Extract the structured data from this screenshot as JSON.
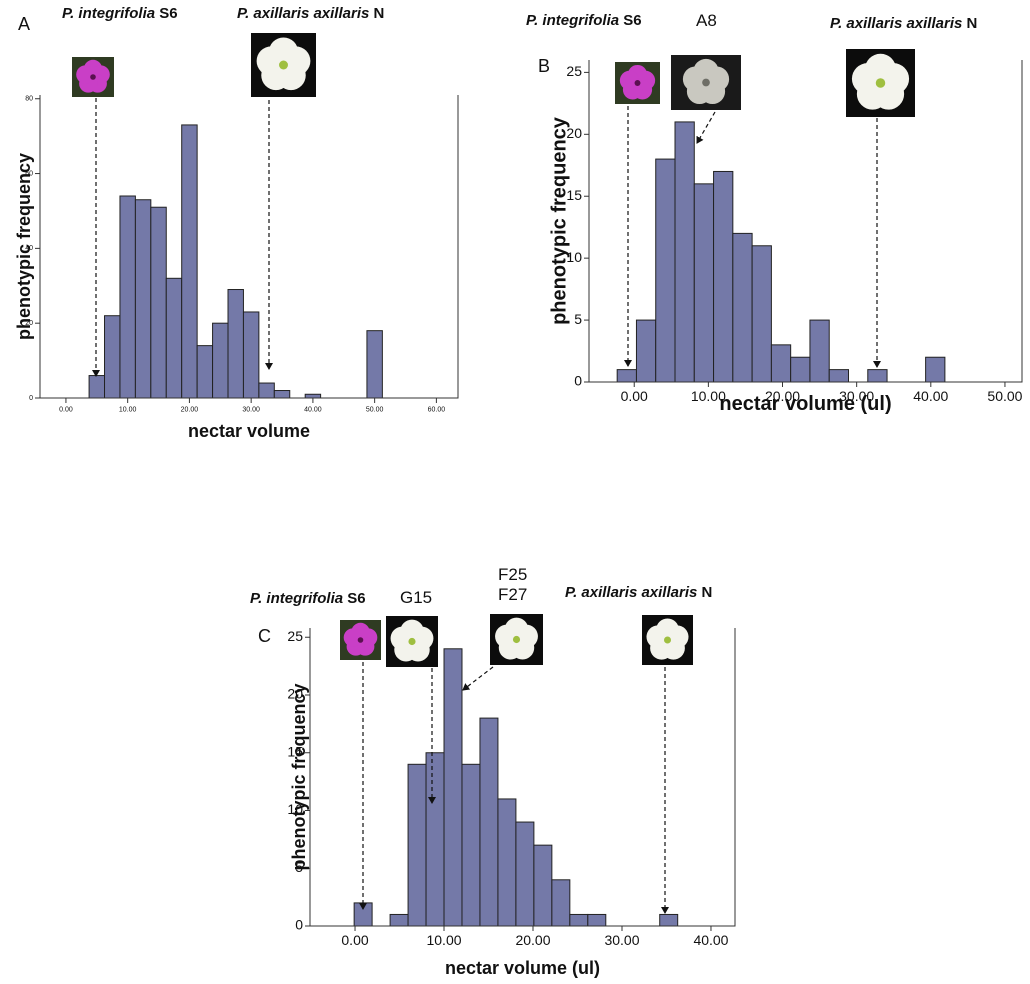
{
  "chart_data": [
    {
      "type": "histogram",
      "panel": "A",
      "x_label": "nectar volume",
      "y_label": "phenotypic frequency",
      "color": "#7479a8",
      "bins": [
        3.75,
        6.25,
        8.75,
        11.25,
        13.75,
        16.25,
        18.75,
        21.25,
        23.75,
        26.25,
        28.75,
        31.25,
        33.75,
        36.25,
        38.75,
        41.25,
        43.75,
        46.25,
        48.75,
        51.25
      ],
      "values": [
        6,
        22,
        54,
        53,
        51,
        32,
        73,
        14,
        20,
        29,
        23,
        4,
        2,
        0,
        1,
        0,
        0,
        0,
        18
      ],
      "xlim": [
        -4.2,
        63.5
      ],
      "ylim": [
        0,
        81
      ],
      "xticks": [
        {
          "value": 0,
          "label": "0.00"
        },
        {
          "value": 10,
          "label": "10.00"
        },
        {
          "value": 20,
          "label": "20.00"
        },
        {
          "value": 30,
          "label": "30.00"
        },
        {
          "value": 40,
          "label": "40.00"
        },
        {
          "value": 50,
          "label": "50.00"
        },
        {
          "value": 60,
          "label": "60.00"
        }
      ],
      "yticks": [
        0,
        20,
        40,
        60,
        80
      ],
      "annotations": [
        {
          "species": "P. integrifolia",
          "code": "S6"
        },
        {
          "species": "P. axillaris axillaris",
          "code": "N"
        }
      ]
    },
    {
      "type": "histogram",
      "panel": "B",
      "x_label": "nectar volume (ul)",
      "y_label": "phenotypic frequency",
      "color": "#7479a8",
      "bins": [
        -2.3,
        0.3,
        2.9,
        5.5,
        8.1,
        10.7,
        13.3,
        15.9,
        18.5,
        21.1,
        23.7,
        26.3,
        28.9,
        31.5,
        34.1,
        36.7,
        39.3,
        41.9
      ],
      "values": [
        1,
        5,
        18,
        21,
        16,
        17,
        12,
        11,
        3,
        2,
        5,
        1,
        0,
        1,
        0,
        0,
        2
      ],
      "xlim": [
        -6.1,
        52.3
      ],
      "ylim": [
        0,
        26
      ],
      "xticks": [
        {
          "value": 0,
          "label": "0.00"
        },
        {
          "value": 10,
          "label": "10.00"
        },
        {
          "value": 20,
          "label": "20.00"
        },
        {
          "value": 30,
          "label": "30.00"
        },
        {
          "value": 40,
          "label": "40.00"
        },
        {
          "value": 50,
          "label": "50.00"
        }
      ],
      "yticks": [
        0,
        5,
        10,
        15,
        20,
        25
      ],
      "annotations": [
        {
          "species": "P. integrifolia",
          "code": "S6"
        },
        {
          "codes": [
            "A8"
          ]
        },
        {
          "species": "P. axillaris axillaris",
          "code": "N"
        }
      ]
    },
    {
      "type": "histogram",
      "panel": "C",
      "x_label": "nectar volume (ul)",
      "y_label": "phenotypic frequency",
      "color": "#7479a8",
      "bins": [
        -0.1,
        1.92,
        3.94,
        5.96,
        7.98,
        10.0,
        12.02,
        14.04,
        16.06,
        18.08,
        20.1,
        22.12,
        24.14,
        26.16,
        28.18,
        30.2,
        32.22,
        34.24,
        36.26
      ],
      "values": [
        2,
        0,
        1,
        14,
        15,
        24,
        14,
        18,
        11,
        9,
        7,
        4,
        1,
        1,
        0,
        0,
        0,
        1
      ],
      "xlim": [
        -5.06,
        42.7
      ],
      "ylim": [
        0,
        25.8
      ],
      "xticks": [
        {
          "value": 0,
          "label": "0.00"
        },
        {
          "value": 10,
          "label": "10.00"
        },
        {
          "value": 20,
          "label": "20.00"
        },
        {
          "value": 30,
          "label": "30.00"
        },
        {
          "value": 40,
          "label": "40.00"
        }
      ],
      "yticks": [
        0,
        5,
        10,
        15,
        20,
        25
      ],
      "annotations": [
        {
          "species": "P. integrifolia",
          "code": "S6"
        },
        {
          "codes": [
            "G15"
          ]
        },
        {
          "codes": [
            "F25",
            "F27"
          ]
        },
        {
          "species": "P. axillaris axillaris",
          "code": "N"
        }
      ]
    }
  ]
}
